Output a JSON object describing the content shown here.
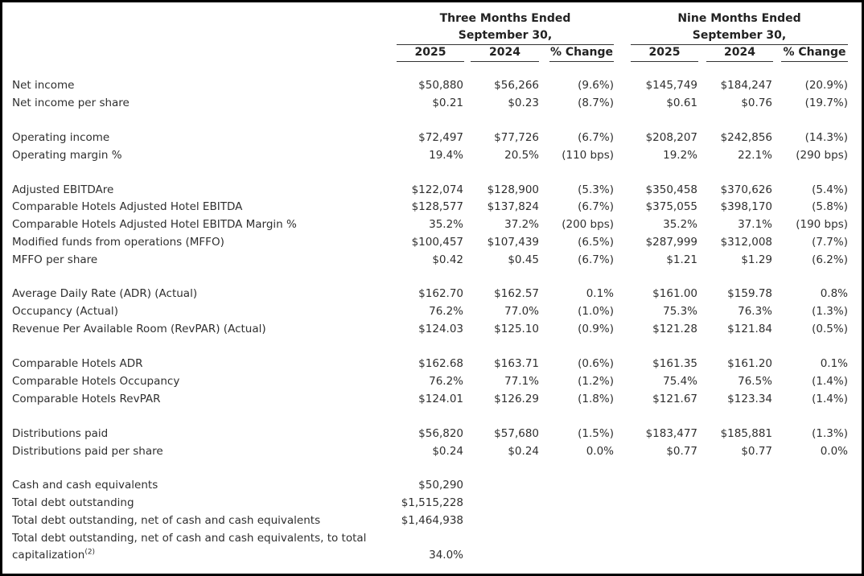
{
  "header": {
    "three_months": {
      "line1": "Three Months Ended",
      "line2": "September 30,"
    },
    "nine_months": {
      "line1": "Nine Months Ended",
      "line2": "September 30,"
    },
    "columns": [
      "2025",
      "2024",
      "% Change",
      "2025",
      "2024",
      "% Change"
    ]
  },
  "rows": [
    {
      "label": "Net income",
      "values": [
        "$50,880",
        "$56,266",
        "(9.6%)",
        "$145,749",
        "$184,247",
        "(20.9%)"
      ]
    },
    {
      "label": "Net income per share",
      "values": [
        "$0.21",
        "$0.23",
        "(8.7%)",
        "$0.61",
        "$0.76",
        "(19.7%)"
      ]
    },
    {
      "label": "Operating income",
      "values": [
        "$72,497",
        "$77,726",
        "(6.7%)",
        "$208,207",
        "$242,856",
        "(14.3%)"
      ]
    },
    {
      "label": "Operating margin %",
      "values": [
        "19.4%",
        "20.5%",
        "(110 bps)",
        "19.2%",
        "22.1%",
        "(290 bps)"
      ]
    },
    {
      "label": "Adjusted EBITDAre",
      "values": [
        "$122,074",
        "$128,900",
        "(5.3%)",
        "$350,458",
        "$370,626",
        "(5.4%)"
      ]
    },
    {
      "label": "Comparable Hotels Adjusted Hotel EBITDA",
      "values": [
        "$128,577",
        "$137,824",
        "(6.7%)",
        "$375,055",
        "$398,170",
        "(5.8%)"
      ]
    },
    {
      "label": "Comparable Hotels Adjusted Hotel EBITDA Margin %",
      "values": [
        "35.2%",
        "37.2%",
        "(200 bps)",
        "35.2%",
        "37.1%",
        "(190 bps)"
      ]
    },
    {
      "label": "Modified funds from operations (MFFO)",
      "values": [
        "$100,457",
        "$107,439",
        "(6.5%)",
        "$287,999",
        "$312,008",
        "(7.7%)"
      ]
    },
    {
      "label": "MFFO per share",
      "values": [
        "$0.42",
        "$0.45",
        "(6.7%)",
        "$1.21",
        "$1.29",
        "(6.2%)"
      ]
    },
    {
      "label": "Average Daily Rate (ADR) (Actual)",
      "values": [
        "$162.70",
        "$162.57",
        "0.1%",
        "$161.00",
        "$159.78",
        "0.8%"
      ]
    },
    {
      "label": "Occupancy (Actual)",
      "values": [
        "76.2%",
        "77.0%",
        "(1.0%)",
        "75.3%",
        "76.3%",
        "(1.3%)"
      ]
    },
    {
      "label": "Revenue Per Available Room (RevPAR) (Actual)",
      "values": [
        "$124.03",
        "$125.10",
        "(0.9%)",
        "$121.28",
        "$121.84",
        "(0.5%)"
      ]
    },
    {
      "label": "Comparable Hotels ADR",
      "values": [
        "$162.68",
        "$163.71",
        "(0.6%)",
        "$161.35",
        "$161.20",
        "0.1%"
      ]
    },
    {
      "label": "Comparable Hotels Occupancy",
      "values": [
        "76.2%",
        "77.1%",
        "(1.2%)",
        "75.4%",
        "76.5%",
        "(1.4%)"
      ]
    },
    {
      "label": "Comparable Hotels RevPAR",
      "values": [
        "$124.01",
        "$126.29",
        "(1.8%)",
        "$121.67",
        "$123.34",
        "(1.4%)"
      ]
    },
    {
      "label": "Distributions paid",
      "values": [
        "$56,820",
        "$57,680",
        "(1.5%)",
        "$183,477",
        "$185,881",
        "(1.3%)"
      ]
    },
    {
      "label": "Distributions paid per share",
      "values": [
        "$0.24",
        "$0.24",
        "0.0%",
        "$0.77",
        "$0.77",
        "0.0%"
      ]
    },
    {
      "label": "Cash and cash equivalents",
      "values": [
        "$50,290"
      ]
    },
    {
      "label": "Total debt outstanding",
      "values": [
        "$1,515,228"
      ]
    },
    {
      "label": "Total debt outstanding, net of cash and cash equivalents",
      "values": [
        "$1,464,938"
      ]
    },
    {
      "label": "Total debt outstanding, net of cash and cash equivalents, to total",
      "values": []
    },
    {
      "label": "capitalization",
      "sup": "(2)",
      "values": [
        "34.0%"
      ]
    }
  ]
}
